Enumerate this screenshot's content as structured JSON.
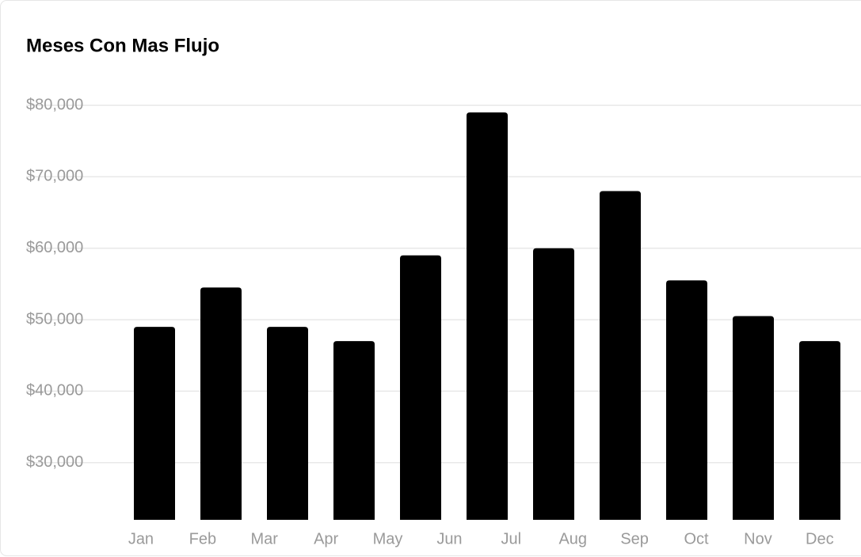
{
  "chart_data": {
    "type": "bar",
    "title": "Meses Con Mas Flujo",
    "categories": [
      "Jan",
      "Feb",
      "Mar",
      "Apr",
      "May",
      "Jun",
      "Jul",
      "Aug",
      "Sep",
      "Oct",
      "Nov",
      "Dec"
    ],
    "values": [
      49000,
      54500,
      49000,
      47000,
      59000,
      79000,
      60000,
      68000,
      55500,
      50500,
      47000,
      null
    ],
    "color": "#000000",
    "ylim": [
      22000,
      82000
    ],
    "yticks": [
      {
        "value": 30000,
        "label": "$30,000"
      },
      {
        "value": 40000,
        "label": "$40,000"
      },
      {
        "value": 50000,
        "label": "$50,000"
      },
      {
        "value": 60000,
        "label": "$60,000"
      },
      {
        "value": 70000,
        "label": "$70,000"
      },
      {
        "value": 80000,
        "label": "$80,000"
      }
    ],
    "grid": true
  }
}
